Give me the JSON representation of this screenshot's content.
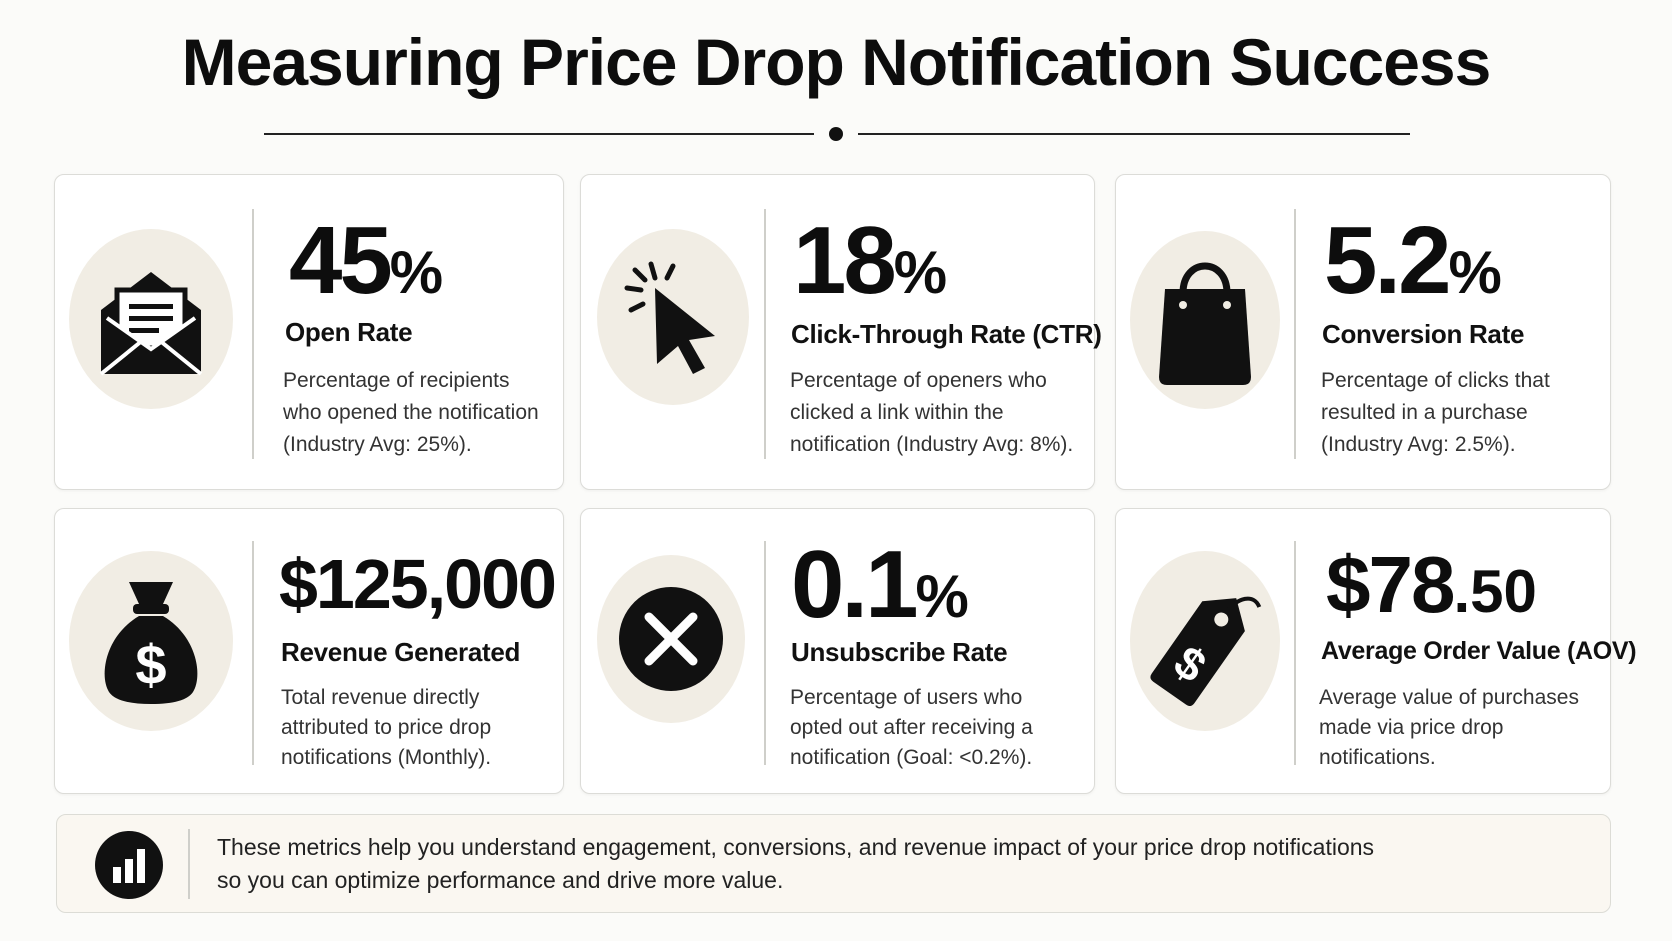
{
  "title": "Measuring Price Drop Notification Success",
  "accent_colors": {
    "icon_background": "#f1ede4",
    "ink": "#111111",
    "footer_background": "#faf7f1"
  },
  "metrics": [
    {
      "icon": "envelope-icon",
      "value": "45",
      "suffix": "%",
      "label": "Open Rate",
      "description": [
        "Percentage of recipients",
        "who opened the notification",
        "(Industry Avg: 25%)."
      ]
    },
    {
      "icon": "cursor-click-icon",
      "value": "18",
      "suffix": "%",
      "label": "Click-Through Rate (CTR)",
      "description": [
        "Percentage of openers who",
        "clicked a link within the",
        "notification (Industry Avg: 8%)."
      ]
    },
    {
      "icon": "shopping-bag-icon",
      "value": "5.2",
      "suffix": "%",
      "label": "Conversion Rate",
      "description": [
        "Percentage of clicks that",
        "resulted in a purchase",
        "(Industry Avg: 2.5%)."
      ]
    },
    {
      "icon": "money-bag-icon",
      "value": "$125,000",
      "suffix": "",
      "label": "Revenue Generated",
      "description": [
        "Total revenue directly",
        "attributed to price drop",
        "notifications (Monthly)."
      ]
    },
    {
      "icon": "close-circle-icon",
      "value": "0.1",
      "suffix": "%",
      "label": "Unsubscribe Rate",
      "description": [
        "Percentage of users who",
        "opted out after receiving a",
        "notification (Goal: <0.2%)."
      ]
    },
    {
      "icon": "price-tag-icon",
      "value": "$78",
      "suffix": ".50",
      "label": "Average Order Value (AOV)",
      "description": [
        "Average value of purchases",
        "made via price drop",
        "notifications."
      ]
    }
  ],
  "footer": {
    "icon": "bar-chart-icon",
    "text": [
      "These metrics help you understand engagement, conversions, and revenue impact of your price drop notifications",
      "so you can optimize performance and drive more value."
    ]
  }
}
